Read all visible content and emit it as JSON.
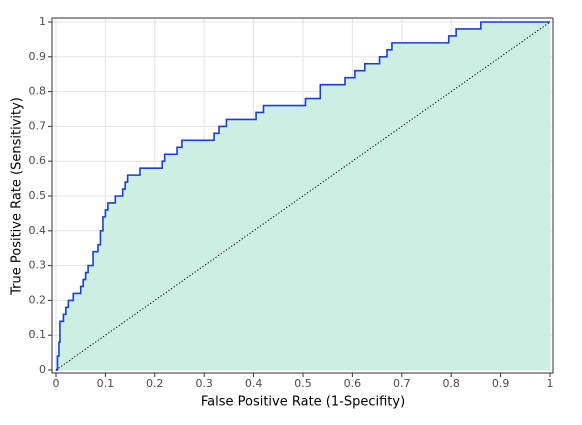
{
  "chart_data": {
    "type": "line",
    "x_label": "False Positive Rate (1-Specifity)",
    "y_label": "True Positive Rate (Sensitivity)",
    "xlim": [
      0,
      1
    ],
    "ylim": [
      0,
      1
    ],
    "xticks": [
      0,
      0.1,
      0.2,
      0.3,
      0.4,
      0.5,
      0.6,
      0.7,
      0.8,
      0.9,
      1
    ],
    "yticks": [
      0,
      0.1,
      0.2,
      0.3,
      0.4,
      0.5,
      0.6,
      0.7,
      0.8,
      0.9,
      1
    ],
    "grid": true,
    "series": [
      {
        "color": "#1a3fd8",
        "fill": "#cdeee2",
        "style": "solid",
        "x": [
          0,
          0.003,
          0.003,
          0.006,
          0.006,
          0.008,
          0.008,
          0.015,
          0.015,
          0.02,
          0.02,
          0.025,
          0.025,
          0.035,
          0.035,
          0.05,
          0.05,
          0.055,
          0.055,
          0.06,
          0.06,
          0.065,
          0.065,
          0.075,
          0.075,
          0.085,
          0.085,
          0.09,
          0.09,
          0.095,
          0.095,
          0.1,
          0.1,
          0.105,
          0.105,
          0.12,
          0.12,
          0.135,
          0.135,
          0.14,
          0.14,
          0.145,
          0.145,
          0.17,
          0.17,
          0.215,
          0.215,
          0.22,
          0.22,
          0.245,
          0.245,
          0.255,
          0.255,
          0.32,
          0.32,
          0.33,
          0.33,
          0.345,
          0.345,
          0.405,
          0.405,
          0.42,
          0.42,
          0.505,
          0.505,
          0.535,
          0.535,
          0.585,
          0.585,
          0.605,
          0.605,
          0.625,
          0.625,
          0.655,
          0.655,
          0.67,
          0.67,
          0.68,
          0.68,
          0.795,
          0.795,
          0.81,
          0.81,
          0.86,
          0.86,
          1
        ],
        "values": [
          0,
          0,
          0.04,
          0.04,
          0.08,
          0.08,
          0.14,
          0.14,
          0.16,
          0.16,
          0.18,
          0.18,
          0.2,
          0.2,
          0.22,
          0.22,
          0.24,
          0.24,
          0.26,
          0.26,
          0.28,
          0.28,
          0.3,
          0.3,
          0.34,
          0.34,
          0.36,
          0.36,
          0.4,
          0.4,
          0.44,
          0.44,
          0.46,
          0.46,
          0.48,
          0.48,
          0.5,
          0.5,
          0.52,
          0.52,
          0.54,
          0.54,
          0.56,
          0.56,
          0.58,
          0.58,
          0.6,
          0.6,
          0.62,
          0.62,
          0.64,
          0.64,
          0.66,
          0.66,
          0.68,
          0.68,
          0.7,
          0.7,
          0.72,
          0.72,
          0.74,
          0.74,
          0.76,
          0.76,
          0.78,
          0.78,
          0.82,
          0.82,
          0.84,
          0.84,
          0.86,
          0.86,
          0.88,
          0.88,
          0.9,
          0.9,
          0.92,
          0.92,
          0.94,
          0.94,
          0.96,
          0.96,
          0.98,
          0.98,
          1,
          1
        ]
      },
      {
        "color": "#000000",
        "style": "dotted",
        "x": [
          0,
          1
        ],
        "values": [
          0,
          1
        ]
      }
    ]
  }
}
